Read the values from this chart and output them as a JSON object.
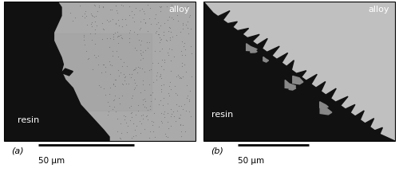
{
  "fig_width": 5.0,
  "fig_height": 2.16,
  "dpi": 100,
  "bg_color": "#ffffff",
  "panel_a": {
    "label": "(a)",
    "scalebar_text": "50 μm",
    "alloy_text": "alloy",
    "resin_text": "resin",
    "alloy_color": "#aaaaaa",
    "alloy_color2": "#9e9e9e",
    "resin_color": "#111111",
    "dot_color": "#707070"
  },
  "panel_b": {
    "label": "(b)",
    "scalebar_text": "50 μm",
    "alloy_text": "alloy",
    "resin_text": "resin",
    "alloy_color": "#c0c0c0",
    "resin_color": "#111111"
  },
  "scalebar_color": "#000000",
  "scalebar_thickness": 2.0,
  "label_fontsize": 8,
  "text_fontsize": 8,
  "scalebar_fontsize": 7.5
}
